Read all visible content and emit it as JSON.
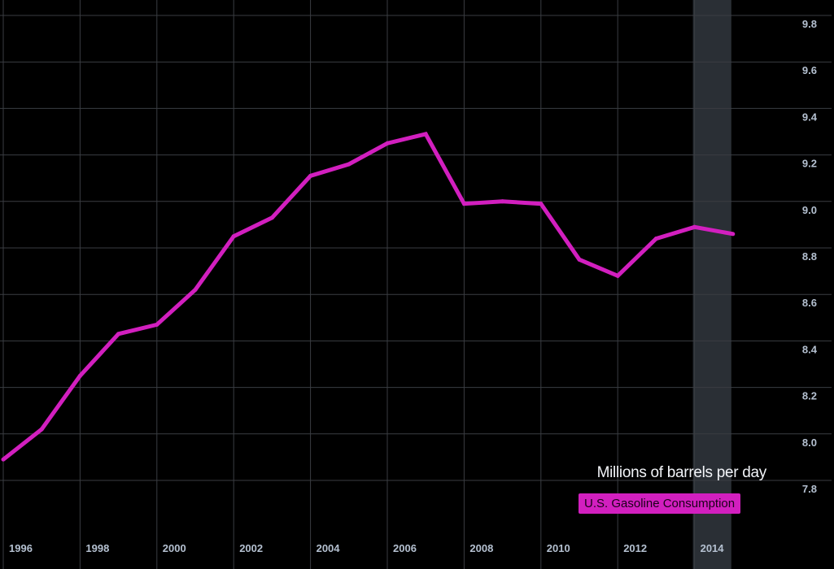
{
  "chart_data": {
    "type": "line",
    "title": "",
    "ylabel": "Millions of barrels per day",
    "xlabel": "",
    "xlim": [
      1995,
      2016
    ],
    "ylim": [
      7.8,
      9.8
    ],
    "x_ticks": [
      "1996",
      "1998",
      "2000",
      "2002",
      "2004",
      "2006",
      "2008",
      "2010",
      "2012",
      "2014"
    ],
    "y_ticks": [
      "9.8",
      "9.6",
      "9.4",
      "9.2",
      "9.0",
      "8.8",
      "8.6",
      "8.4",
      "8.2",
      "8.0",
      "7.8"
    ],
    "grid": true,
    "highlight_year": 2014,
    "legend_position": "bottom-right",
    "series": [
      {
        "name": "U.S. Gasoline Consumption",
        "color": "#d21fbf",
        "x": [
          1995,
          1996,
          1997,
          1998,
          1999,
          2000,
          2001,
          2002,
          2003,
          2004,
          2005,
          2006,
          2007,
          2008,
          2009,
          2010,
          2011,
          2012,
          2013,
          2014
        ],
        "values": [
          7.89,
          8.02,
          8.25,
          8.43,
          8.47,
          8.62,
          8.85,
          8.93,
          9.11,
          9.16,
          9.25,
          9.29,
          8.99,
          9.0,
          8.99,
          8.75,
          8.68,
          8.84,
          8.89,
          8.86
        ]
      }
    ]
  },
  "colors": {
    "grid": "#3a3d42",
    "band": "#2a2f35",
    "tick": "#b4c0d0",
    "background": "#000000"
  }
}
